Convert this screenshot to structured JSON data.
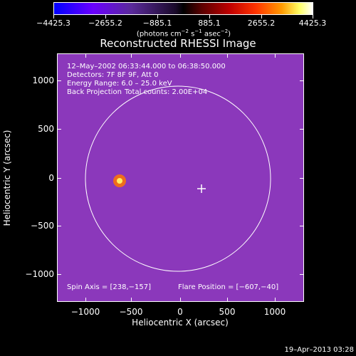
{
  "colorbar": {
    "tick_labels": [
      "−4425.3",
      "−2655.2",
      "−885.1",
      "885.1",
      "2655.2",
      "4425.3"
    ],
    "units_text": "(photons cm",
    "units_exp1": "−2",
    "units_mid": " s",
    "units_exp2": "−1",
    "units_mid2": " asec",
    "units_exp3": "−2",
    "units_end": ")"
  },
  "title": "Reconstructed RHESSI Image",
  "info": {
    "time_range": "12–May–2002 06:33:44.000 to 06:38:50.000",
    "detectors": "Detectors: 7F 8F 9F, Att 0",
    "energy": "Energy Range: 6.0 – 25.0 keV",
    "method": "Back Projection",
    "counts": "Total counts: 2.00E+04",
    "spin_axis": "Spin Axis = [238,−157]",
    "flare_position": "Flare Position = [−607,−40]"
  },
  "axes": {
    "xlabel": "Heliocentric X (arcsec)",
    "ylabel": "Heliocentric Y (arcsec)",
    "x_ticks": [
      "−1000",
      "−500",
      "0",
      "500",
      "1000"
    ],
    "y_ticks": [
      "1000",
      "500",
      "0",
      "−500",
      "−1000"
    ],
    "xlim": [
      -1270,
      1270
    ],
    "ylim": [
      -1270,
      1270
    ]
  },
  "footer": {
    "date": "19–Apr–2013 03:28"
  },
  "colors": {
    "background": "#000000",
    "foreground": "#ffffff"
  }
}
